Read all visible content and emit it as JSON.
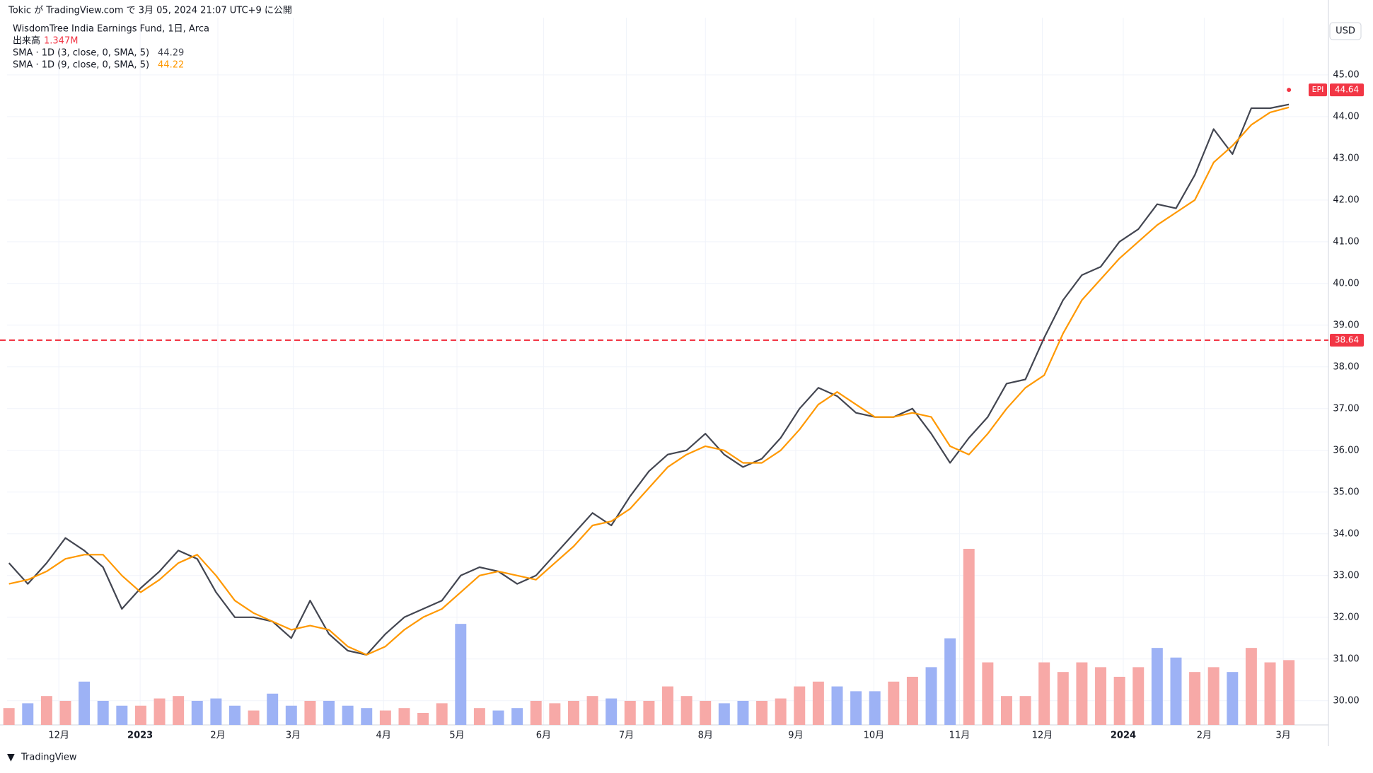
{
  "header": {
    "publisher": "Tokic が TradingView.com で 3月 05, 2024 21:07 UTC+9 に公開",
    "currency": "USD",
    "logo": "TradingView"
  },
  "legend": {
    "symbol": "WisdomTree India Earnings Fund, 1日, Arca",
    "volume_value": "1.347M"
  },
  "chart_data": {
    "type": "line",
    "x": [
      0,
      1,
      2,
      3,
      4,
      5,
      6,
      7,
      8,
      9,
      10,
      11,
      12,
      13,
      14,
      15,
      16,
      17,
      18,
      19,
      20,
      21,
      22,
      23,
      24,
      25,
      26,
      27,
      28,
      29,
      30,
      31,
      32,
      33,
      34,
      35,
      36,
      37,
      38,
      39,
      40,
      41,
      42,
      43,
      44,
      45,
      46,
      47,
      48,
      49,
      50,
      51,
      52,
      53,
      54,
      55,
      56,
      57,
      58,
      59,
      60,
      61,
      62,
      63,
      64,
      65,
      66,
      67,
      68
    ],
    "series": [
      {
        "name": "SMA · 1D (3, close, 0, SMA, 5)",
        "color": "#434651",
        "values": [
          33.3,
          32.8,
          33.3,
          33.9,
          33.6,
          33.2,
          32.2,
          32.7,
          33.1,
          33.6,
          33.4,
          32.6,
          32.0,
          32.0,
          31.9,
          31.5,
          32.4,
          31.6,
          31.2,
          31.1,
          31.6,
          32.0,
          32.2,
          32.4,
          33.0,
          33.2,
          33.1,
          32.8,
          33.0,
          33.5,
          34.0,
          34.5,
          34.2,
          34.9,
          35.5,
          35.9,
          36.0,
          36.4,
          35.9,
          35.6,
          35.8,
          36.3,
          37.0,
          37.5,
          37.3,
          36.9,
          36.8,
          36.8,
          37.0,
          36.4,
          35.7,
          36.3,
          36.8,
          37.6,
          37.7,
          38.7,
          39.6,
          40.2,
          40.4,
          41.0,
          41.3,
          41.9,
          41.8,
          42.6,
          43.7,
          43.1,
          44.2,
          44.2,
          44.29
        ]
      },
      {
        "name": "SMA · 1D (9, close, 0, SMA, 5)",
        "color": "#ff9800",
        "values": [
          32.8,
          32.9,
          33.1,
          33.4,
          33.5,
          33.5,
          33.0,
          32.6,
          32.9,
          33.3,
          33.5,
          33.0,
          32.4,
          32.1,
          31.9,
          31.7,
          31.8,
          31.7,
          31.3,
          31.1,
          31.3,
          31.7,
          32.0,
          32.2,
          32.6,
          33.0,
          33.1,
          33.0,
          32.9,
          33.3,
          33.7,
          34.2,
          34.3,
          34.6,
          35.1,
          35.6,
          35.9,
          36.1,
          36.0,
          35.7,
          35.7,
          36.0,
          36.5,
          37.1,
          37.4,
          37.1,
          36.8,
          36.8,
          36.9,
          36.8,
          36.1,
          35.9,
          36.4,
          37.0,
          37.5,
          37.8,
          38.8,
          39.6,
          40.1,
          40.6,
          41.0,
          41.4,
          41.7,
          42.0,
          42.9,
          43.3,
          43.8,
          44.1,
          44.22
        ]
      }
    ],
    "volume": {
      "name": "出来高",
      "values": [
        0.35,
        0.45,
        0.6,
        0.5,
        0.9,
        0.5,
        0.4,
        0.4,
        0.55,
        0.6,
        0.5,
        0.55,
        0.4,
        0.3,
        0.65,
        0.4,
        0.5,
        0.5,
        0.4,
        0.35,
        0.3,
        0.35,
        0.25,
        0.45,
        2.1,
        0.35,
        0.3,
        0.35,
        0.5,
        0.45,
        0.5,
        0.6,
        0.55,
        0.5,
        0.5,
        0.8,
        0.6,
        0.5,
        0.45,
        0.5,
        0.5,
        0.55,
        0.8,
        0.9,
        0.8,
        0.7,
        0.7,
        0.9,
        1.0,
        1.2,
        1.8,
        3.66,
        1.3,
        0.6,
        0.6,
        1.3,
        1.1,
        1.3,
        1.2,
        1.0,
        1.2,
        1.6,
        1.4,
        1.1,
        1.2,
        1.1,
        1.6,
        1.3,
        1.347
      ],
      "colors": [
        "#f7a9a7",
        "#9db2f5",
        "#f7a9a7",
        "#f7a9a7",
        "#9db2f5",
        "#9db2f5",
        "#9db2f5",
        "#f7a9a7",
        "#f7a9a7",
        "#f7a9a7",
        "#9db2f5",
        "#9db2f5",
        "#9db2f5",
        "#f7a9a7",
        "#9db2f5",
        "#9db2f5",
        "#f7a9a7",
        "#9db2f5",
        "#9db2f5",
        "#9db2f5",
        "#f7a9a7",
        "#f7a9a7",
        "#f7a9a7",
        "#f7a9a7",
        "#9db2f5",
        "#f7a9a7",
        "#9db2f5",
        "#9db2f5",
        "#f7a9a7",
        "#f7a9a7",
        "#f7a9a7",
        "#f7a9a7",
        "#9db2f5",
        "#f7a9a7",
        "#f7a9a7",
        "#f7a9a7",
        "#f7a9a7",
        "#f7a9a7",
        "#9db2f5",
        "#9db2f5",
        "#f7a9a7",
        "#f7a9a7",
        "#f7a9a7",
        "#f7a9a7",
        "#9db2f5",
        "#9db2f5",
        "#9db2f5",
        "#f7a9a7",
        "#f7a9a7",
        "#9db2f5",
        "#9db2f5",
        "#f7a9a7",
        "#f7a9a7",
        "#f7a9a7",
        "#f7a9a7",
        "#f7a9a7",
        "#f7a9a7",
        "#f7a9a7",
        "#f7a9a7",
        "#f7a9a7",
        "#f7a9a7",
        "#9db2f5",
        "#9db2f5",
        "#f7a9a7",
        "#f7a9a7",
        "#9db2f5",
        "#f7a9a7",
        "#f7a9a7",
        "#f7a9a7"
      ],
      "ylim": [
        0,
        14.7
      ]
    },
    "xlim": [
      -0.1,
      70.1
    ],
    "xticks": [
      {
        "value": 2.65,
        "label": "12月"
      },
      {
        "value": 6.97,
        "label": "2023"
      },
      {
        "value": 11.1,
        "label": "2月"
      },
      {
        "value": 15.1,
        "label": "3月"
      },
      {
        "value": 19.9,
        "label": "4月"
      },
      {
        "value": 23.8,
        "label": "5月"
      },
      {
        "value": 28.4,
        "label": "6月"
      },
      {
        "value": 32.8,
        "label": "7月"
      },
      {
        "value": 37.0,
        "label": "8月"
      },
      {
        "value": 41.8,
        "label": "9月"
      },
      {
        "value": 45.95,
        "label": "10月"
      },
      {
        "value": 50.5,
        "label": "11月"
      },
      {
        "value": 54.9,
        "label": "12月"
      },
      {
        "value": 59.2,
        "label": "2024"
      },
      {
        "value": 63.5,
        "label": "2月"
      },
      {
        "value": 67.7,
        "label": "3月"
      }
    ],
    "ylim": [
      29.42,
      46.37
    ],
    "yticks": [
      {
        "value": 30,
        "label": "30.00"
      },
      {
        "value": 31,
        "label": "31.00"
      },
      {
        "value": 32,
        "label": "32.00"
      },
      {
        "value": 33,
        "label": "33.00"
      },
      {
        "value": 34,
        "label": "34.00"
      },
      {
        "value": 35,
        "label": "35.00"
      },
      {
        "value": 36,
        "label": "36.00"
      },
      {
        "value": 37,
        "label": "37.00"
      },
      {
        "value": 38,
        "label": "38.00"
      },
      {
        "value": 39,
        "label": "39.00"
      },
      {
        "value": 40,
        "label": "40.00"
      },
      {
        "value": 41,
        "label": "41.00"
      },
      {
        "value": 42,
        "label": "42.00"
      },
      {
        "value": 43,
        "label": "43.00"
      },
      {
        "value": 44,
        "label": "44.00"
      },
      {
        "value": 45,
        "label": "45.00"
      }
    ],
    "grid": true,
    "hline": {
      "value": 38.64,
      "label": "38.64",
      "color": "#f23645"
    },
    "last_price": {
      "symbol": "EPI",
      "value": 44.64,
      "label": "44.64",
      "color": "#f23645"
    }
  }
}
